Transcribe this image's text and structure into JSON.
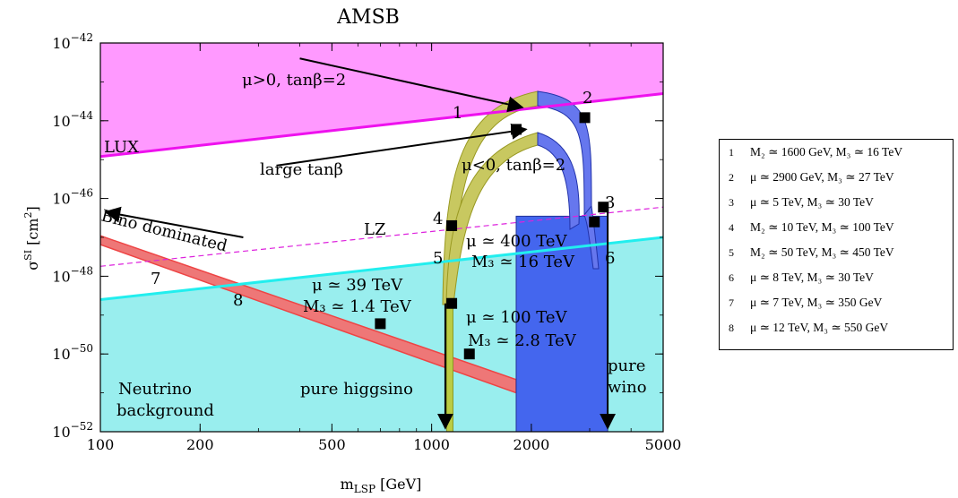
{
  "chart_data": {
    "type": "band",
    "title": "AMSB",
    "xlabel": "m_LSP [GeV]",
    "ylabel": "σ^SI [cm^2]",
    "xscale": "log",
    "yscale": "log",
    "xlim": [
      100,
      5000
    ],
    "ylim": [
      1e-52,
      1e-42
    ],
    "xticks": [
      {
        "value": 100,
        "label": "100"
      },
      {
        "value": 200,
        "label": "200"
      },
      {
        "value": 500,
        "label": "500"
      },
      {
        "value": 1000,
        "label": "1000"
      },
      {
        "value": 2000,
        "label": "2000"
      },
      {
        "value": 5000,
        "label": "5000"
      }
    ],
    "yticks": [
      {
        "value": 1e-52,
        "base": "10",
        "exp": "−52"
      },
      {
        "value": 1e-50,
        "base": "10",
        "exp": "−50"
      },
      {
        "value": 1e-48,
        "base": "10",
        "exp": "−48"
      },
      {
        "value": 1e-46,
        "base": "10",
        "exp": "−46"
      },
      {
        "value": 1e-44,
        "base": "10",
        "exp": "−44"
      },
      {
        "value": 1e-42,
        "base": "10",
        "exp": "−42"
      }
    ],
    "regions": [
      {
        "name": "LUX",
        "color": "#ff99ff",
        "line_color": "#ee11ee",
        "boundary": [
          [
            100,
            1.2e-45
          ],
          [
            5000,
            5e-44
          ]
        ]
      },
      {
        "name": "Neutrino background",
        "color": "#99eeee",
        "line_color": "#22eeee",
        "boundary": [
          [
            100,
            2.5e-49
          ],
          [
            5000,
            1e-47
          ]
        ]
      }
    ],
    "lz_line": {
      "name": "LZ",
      "color": "#dd22dd",
      "points": [
        [
          100,
          1.8e-48
        ],
        [
          5000,
          6e-47
        ]
      ]
    },
    "bino_band": {
      "color": "#ee4444",
      "fill": "#ee7777",
      "upper": [
        [
          100,
          1.1e-47
        ],
        [
          1800,
          2.2e-51
        ]
      ],
      "lower": [
        [
          100,
          6.5e-48
        ],
        [
          1800,
          1e-51
        ]
      ]
    },
    "wino_box": {
      "color": "#4466ee",
      "x": [
        1800,
        3400
      ],
      "y": [
        1e-52,
        3.5e-47
      ]
    },
    "higgsino_strip": {
      "color": "#bbcc44",
      "x": [
        1110,
        1160
      ],
      "y": [
        1e-52,
        1e-47
      ]
    },
    "arrows": {
      "pure_higgsino": {
        "x": 1100,
        "from": 2e-49,
        "to": 1e-52
      },
      "pure_wino": {
        "x": 3400,
        "from": 5e-47,
        "to": 1e-52
      },
      "bino_dominated": {
        "from": [
          270,
          1e-47
        ],
        "to": [
          100,
          4.5e-47
        ]
      },
      "mu_pos": {
        "from": [
          400,
          4e-43
        ],
        "to": [
          2000,
          2.2e-44
        ]
      },
      "large_tanb": {
        "from": [
          340,
          7e-46
        ],
        "to": [
          2000,
          6e-45
        ]
      }
    },
    "points": [
      {
        "label": "1",
        "x": 1800,
        "y": 6e-45
      },
      {
        "label": "2",
        "x": 2900,
        "y": 1.2e-44
      },
      {
        "label": "3",
        "x": 3300,
        "y": 6e-47
      },
      {
        "label": "4",
        "x": 1150,
        "y": 2e-47
      },
      {
        "label": "5",
        "x": 1150,
        "y": 2e-49
      },
      {
        "label": "6",
        "x": 3100,
        "y": 2.5e-47
      },
      {
        "label": "7",
        "x": 700,
        "y": 6e-50
      },
      {
        "label": "8",
        "x": 1300,
        "y": 1e-50
      }
    ],
    "annotations": {
      "lux": "LUX",
      "lz": "LZ",
      "bino": "Bino dominated",
      "mu_pos_tanb2": "μ>0, tanβ=2",
      "mu_neg_tanb2": "μ<0, tanβ=2",
      "large_tanb": "large tanβ",
      "mu_400": "μ ≃ 400 TeV",
      "m3_16": "M₃ ≃ 16 TeV",
      "mu_39": "μ ≃ 39 TeV",
      "m3_1_4": "M₃ ≃ 1.4 TeV",
      "mu_100": "μ ≃ 100 TeV",
      "m3_2_8": "M₃ ≃ 2.8 TeV",
      "pure_higgsino": "pure higgsino",
      "pure_wino_1": "pure",
      "pure_wino_2": "wino",
      "neutrino_1": "Neutrino",
      "neutrino_2": "background",
      "lbl_1": "1",
      "lbl_2": "2",
      "lbl_3": "3",
      "lbl_4": "4",
      "lbl_5": "5",
      "lbl_6": "6",
      "lbl_7": "7",
      "lbl_8": "8"
    },
    "legend": [
      {
        "n": "1",
        "text": "M₂ ≃ 1600 GeV, M₃ ≃ 16 TeV"
      },
      {
        "n": "2",
        "text": "μ ≃ 2900 GeV, M₃ ≃ 27 TeV"
      },
      {
        "n": "3",
        "text": "μ ≃ 5 TeV, M₃ ≃ 30 TeV"
      },
      {
        "n": "4",
        "text": "M₂ ≃ 10 TeV, M₃ ≃ 100 TeV"
      },
      {
        "n": "5",
        "text": "M₂ ≃ 50 TeV, M₃ ≃ 450 TeV"
      },
      {
        "n": "6",
        "text": "μ ≃ 8 TeV, M₃ ≃ 30 TeV"
      },
      {
        "n": "7",
        "text": "μ ≃ 7 TeV, M₃ ≃ 350 GeV"
      },
      {
        "n": "8",
        "text": "μ ≃ 12 TeV, M₃ ≃ 550 GeV"
      }
    ]
  }
}
